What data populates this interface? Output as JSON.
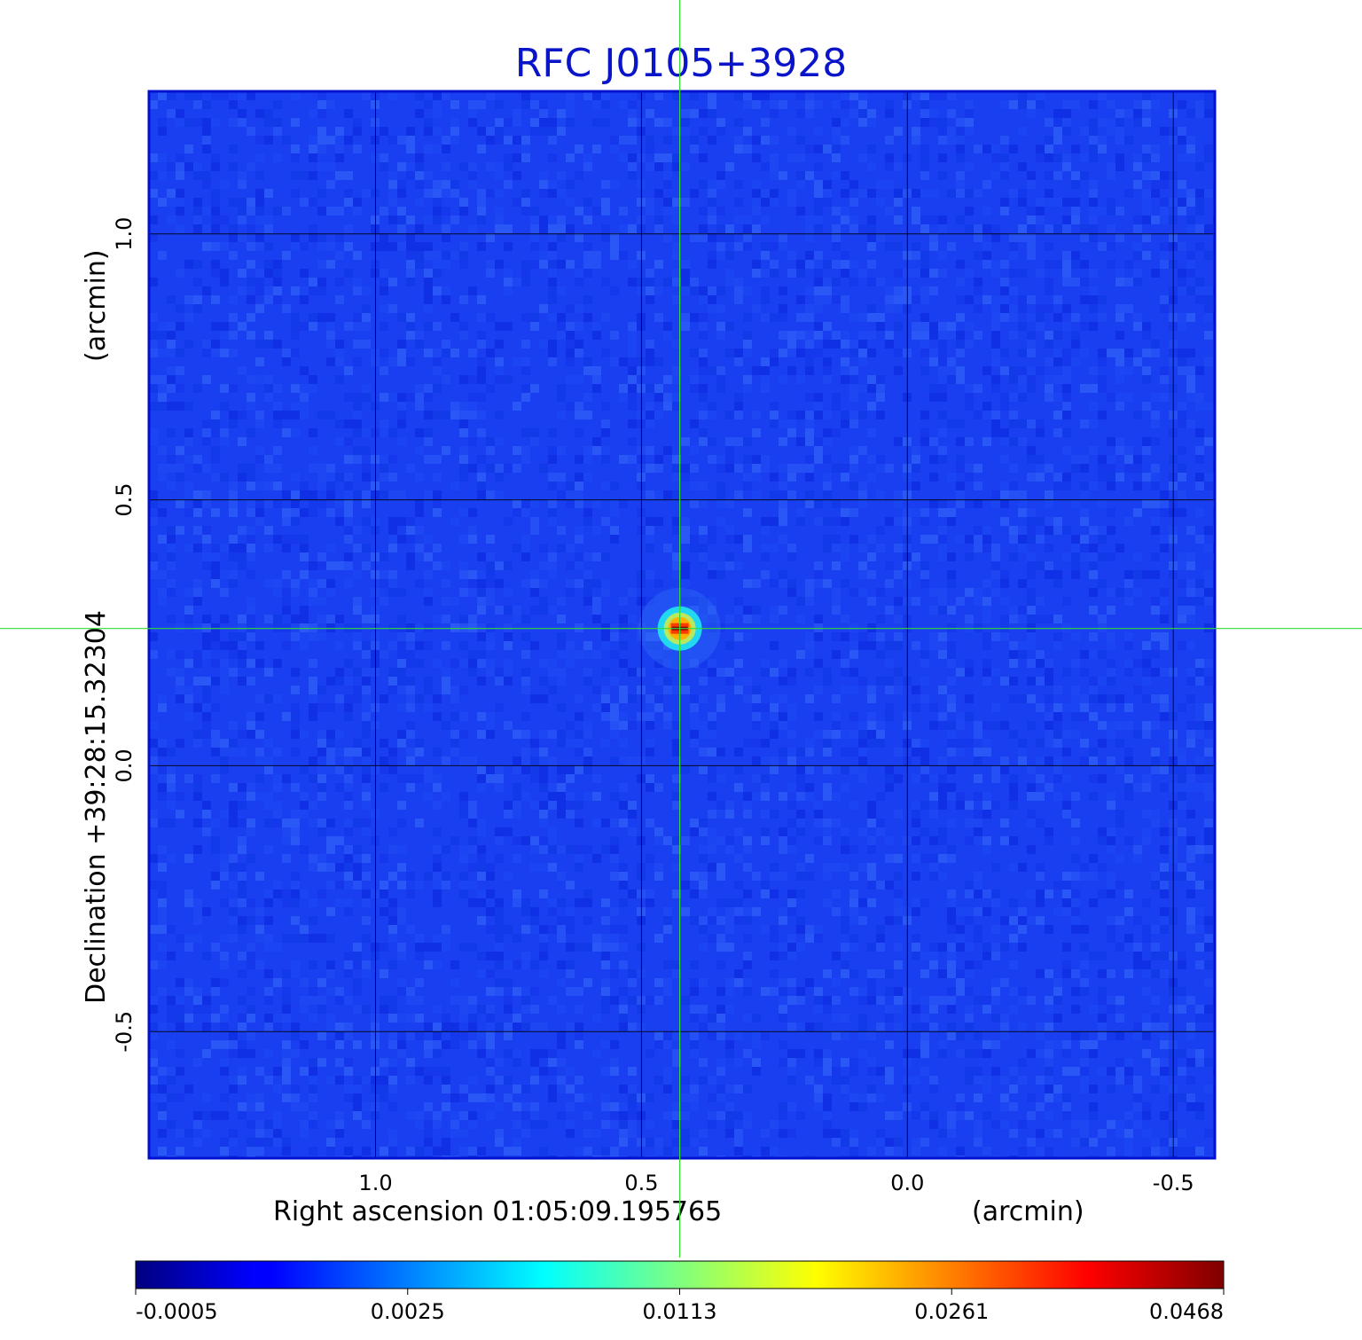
{
  "chart_data": {
    "type": "heatmap",
    "title": "RFC J0105+3928",
    "xlabel": "Right ascension  01:05:09.195765",
    "xunit": "(arcmin)",
    "ylabel": "Declination  +39:28:15.32304",
    "yunit": "(arcmin)",
    "x_range": [
      1.426,
      -0.578
    ],
    "y_range": [
      -0.738,
      1.268
    ],
    "x_ticks": [
      {
        "value": 1.0,
        "label": "1.0"
      },
      {
        "value": 0.5,
        "label": "0.5"
      },
      {
        "value": 0.0,
        "label": "0.0"
      },
      {
        "value": -0.5,
        "label": "-0.5"
      }
    ],
    "y_ticks": [
      {
        "value": 1.0,
        "label": "1.0"
      },
      {
        "value": 0.5,
        "label": "0.5"
      },
      {
        "value": 0.0,
        "label": "0.0"
      },
      {
        "value": -0.5,
        "label": "-0.5"
      }
    ],
    "grid": true,
    "source_peak": {
      "x": 0.428,
      "y": 0.258,
      "value": 0.0468
    },
    "crosshair": {
      "x": 0.428,
      "y": 0.258
    },
    "colorbar": {
      "colormap": "jet",
      "ticks": [
        {
          "value": -0.0005,
          "label": "-0.0005"
        },
        {
          "value": 0.0025,
          "label": "0.0025"
        },
        {
          "value": 0.0113,
          "label": "0.0113"
        },
        {
          "value": 0.0261,
          "label": "0.0261"
        },
        {
          "value": 0.0468,
          "label": "0.0468"
        }
      ]
    },
    "colors": {
      "title": "#0a14c8",
      "grid": "#000000",
      "crosshair": "#33dd33",
      "frame": "#0010d0"
    }
  }
}
